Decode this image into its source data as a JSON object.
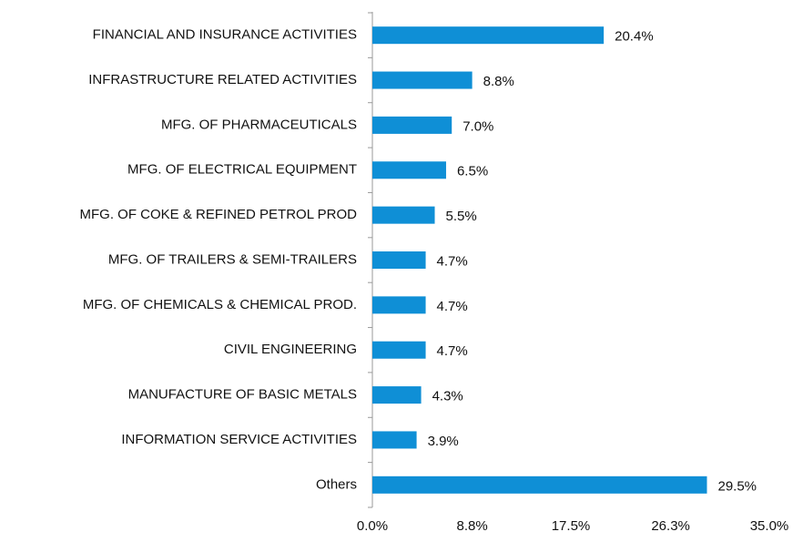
{
  "chart_data": {
    "type": "barh",
    "categories": [
      "FINANCIAL AND INSURANCE ACTIVITIES",
      "INFRASTRUCTURE RELATED ACTIVITIES",
      "MFG. OF PHARMACEUTICALS",
      "MFG. OF ELECTRICAL EQUIPMENT",
      "MFG. OF COKE & REFINED PETROL PROD",
      "MFG. OF TRAILERS & SEMI-TRAILERS",
      "MFG. OF CHEMICALS & CHEMICAL PROD.",
      "CIVIL ENGINEERING",
      "MANUFACTURE OF BASIC METALS",
      "INFORMATION SERVICE ACTIVITIES",
      "Others"
    ],
    "values": [
      20.4,
      8.8,
      7.0,
      6.5,
      5.5,
      4.7,
      4.7,
      4.7,
      4.3,
      3.9,
      29.5
    ],
    "value_labels": [
      "20.4%",
      "8.8%",
      "7.0%",
      "6.5%",
      "5.5%",
      "4.7%",
      "4.7%",
      "4.7%",
      "4.3%",
      "3.9%",
      "29.5%"
    ],
    "color": "#0f8fd6",
    "xlim": [
      0,
      35
    ],
    "xticks": [
      {
        "value": 0,
        "label": "0.0%"
      },
      {
        "value": 8.8,
        "label": "8.8%"
      },
      {
        "value": 17.5,
        "label": "17.5%"
      },
      {
        "value": 26.3,
        "label": "26.3%"
      },
      {
        "value": 35,
        "label": "35.0%"
      }
    ],
    "grid": false
  }
}
